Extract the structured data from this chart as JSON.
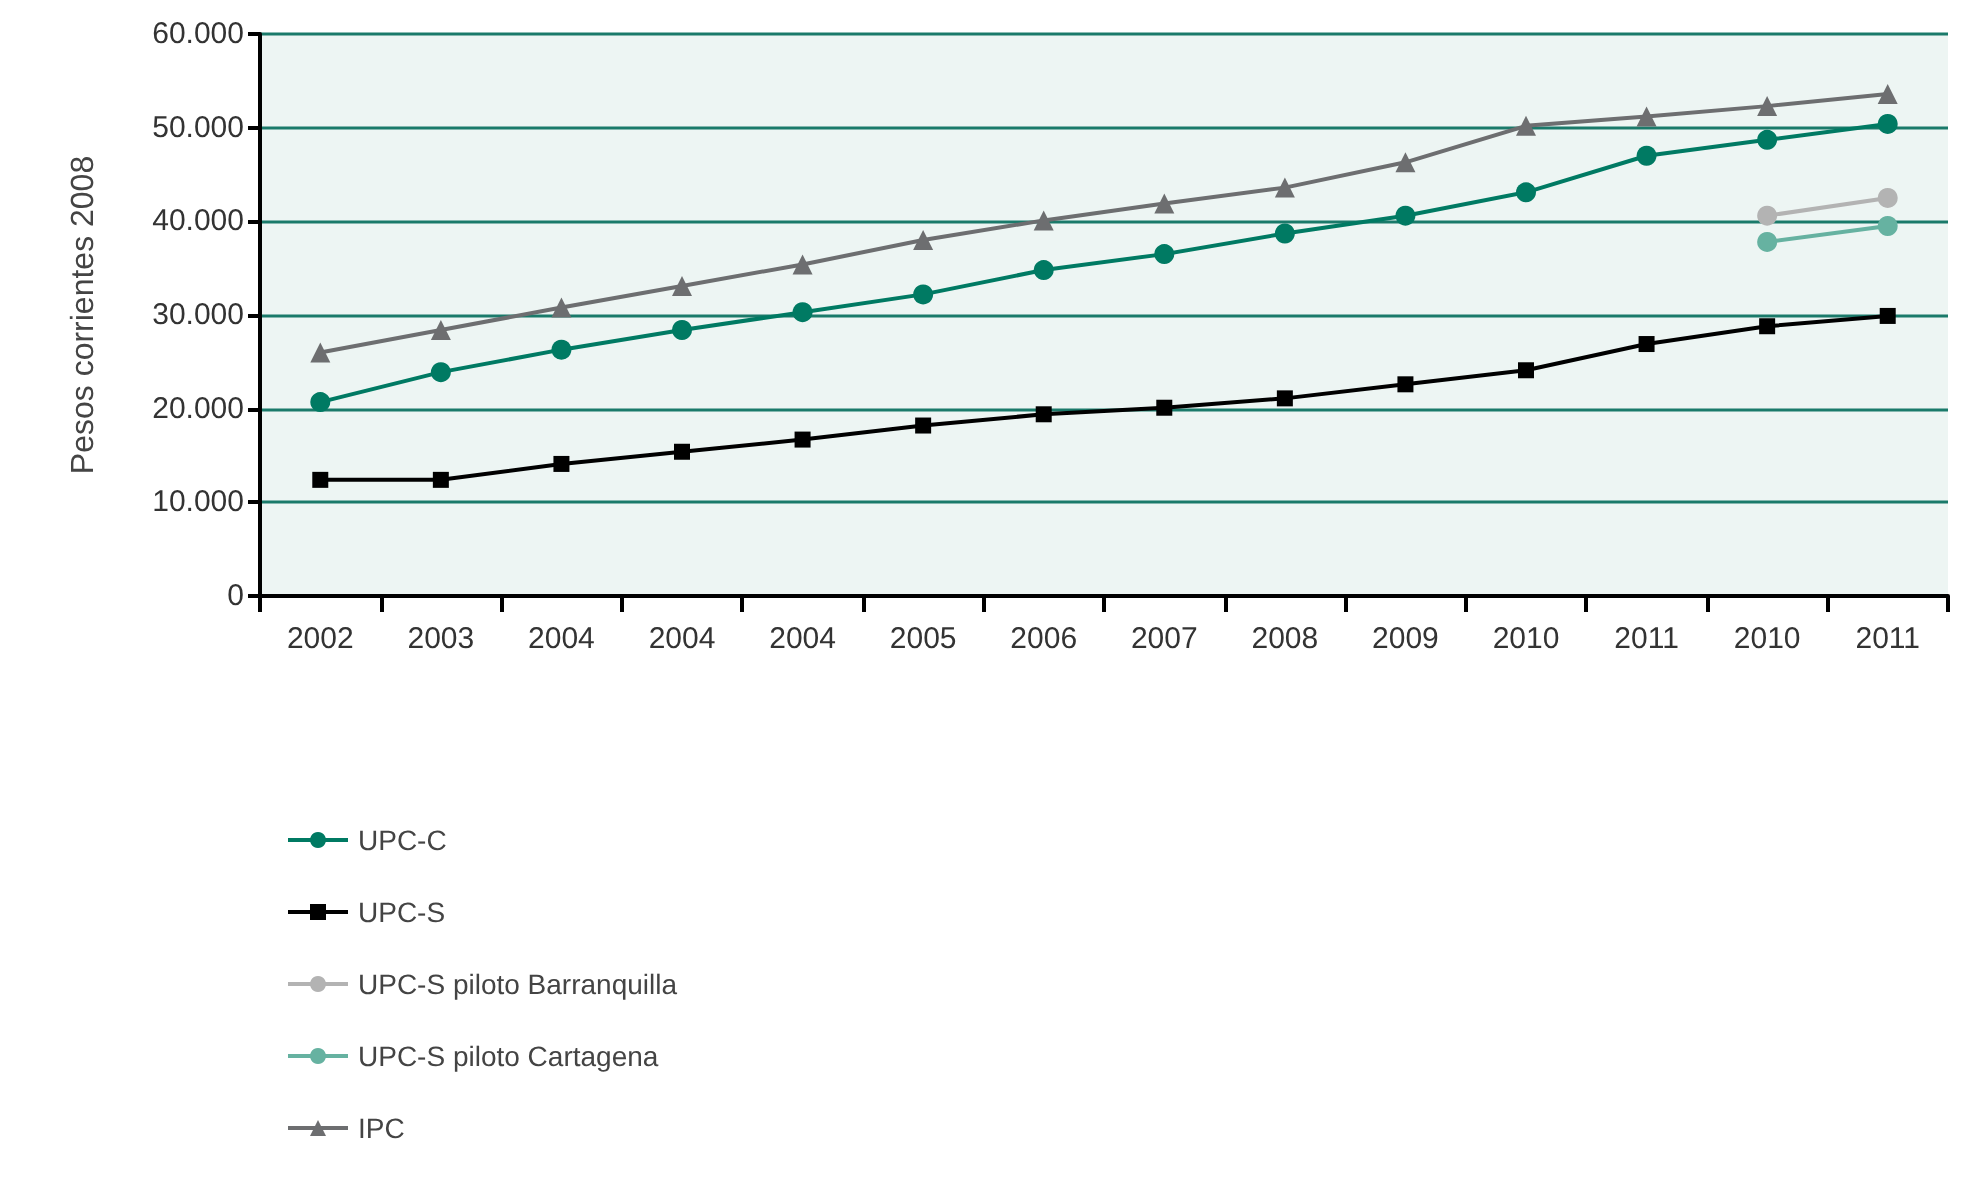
{
  "chart_data": {
    "type": "line",
    "ylabel": "Pesos corrientes 2008",
    "categories": [
      "2002",
      "2003",
      "2004",
      "2004",
      "2004",
      "2005",
      "2006",
      "2007",
      "2008",
      "2009",
      "2010",
      "2011",
      "2010",
      "2011"
    ],
    "series": [
      {
        "name": "UPC-C",
        "color": "#007a63",
        "marker": "circle",
        "values": [
          20700,
          23900,
          26300,
          28400,
          30300,
          32200,
          34800,
          36500,
          38700,
          40600,
          43100,
          47000,
          48700,
          50400
        ]
      },
      {
        "name": "UPC-S",
        "color": "#000000",
        "marker": "square",
        "values": [
          12400,
          12400,
          14100,
          15400,
          16700,
          18200,
          19400,
          20100,
          21100,
          22600,
          24100,
          26900,
          28800,
          29900
        ]
      },
      {
        "name": "UPC-S piloto Barranquilla",
        "color": "#b3b3b3",
        "marker": "circle",
        "values": [
          null,
          null,
          null,
          null,
          null,
          null,
          null,
          null,
          null,
          null,
          null,
          null,
          40600,
          42500
        ]
      },
      {
        "name": "UPC-S piloto Cartagena",
        "color": "#66b2a1",
        "marker": "circle",
        "values": [
          null,
          null,
          null,
          null,
          null,
          null,
          null,
          null,
          null,
          null,
          null,
          null,
          37800,
          39500
        ]
      },
      {
        "name": "IPC",
        "color": "#6d6e70",
        "marker": "triangle",
        "values": [
          26000,
          28400,
          30800,
          33100,
          35400,
          38000,
          40100,
          41900,
          43600,
          46300,
          50200,
          51200,
          52300,
          53600
        ]
      }
    ],
    "ylim": [
      0,
      60000
    ],
    "yticks": [
      0,
      {
        "value": 10000,
        "label": "10.000"
      },
      {
        "value": 20000,
        "label": "20.000"
      },
      {
        "value": 30000,
        "label": "30.000"
      },
      {
        "value": 40000,
        "label": "40.000"
      },
      {
        "value": 50000,
        "label": "50.000"
      },
      {
        "value": 60000,
        "label": "60.000"
      }
    ],
    "grid": "y",
    "legend": "bottom left",
    "line_style": "solid"
  }
}
